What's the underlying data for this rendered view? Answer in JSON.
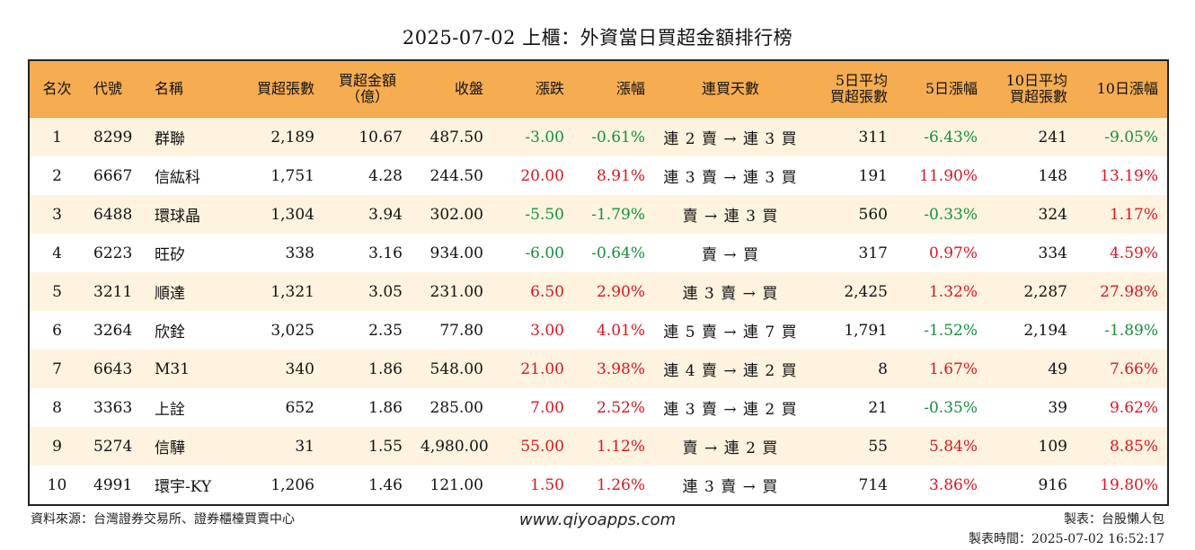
{
  "title": "2025-07-02 上櫃：外資當日買超金額排行榜",
  "colors": {
    "header_bg": "#f6ad52",
    "odd_row_bg": "#fdf3df",
    "up": "#e0141e",
    "down": "#13913a"
  },
  "headers": {
    "rank": "名次",
    "code": "代號",
    "name": "名稱",
    "net_buy_lots": "買超張數",
    "net_buy_amount_1": "買超金額",
    "net_buy_amount_2": "（億）",
    "close": "收盤",
    "change": "漲跌",
    "change_pct": "漲幅",
    "streak": "連買天數",
    "avg5_1": "5日平均",
    "avg5_2": "買超張數",
    "pct5": "5日漲幅",
    "avg10_1": "10日平均",
    "avg10_2": "買超張數",
    "pct10": "10日漲幅"
  },
  "rows": [
    {
      "rank": "1",
      "code": "8299",
      "name": "群聯",
      "lots": "2,189",
      "amount": "10.67",
      "close": "487.50",
      "change": "-3.00",
      "change_dir": "down",
      "pct": "-0.61%",
      "pct_dir": "down",
      "streak": "連 2 賣 → 連 3 買",
      "avg5": "311",
      "pct5": "-6.43%",
      "pct5_dir": "down",
      "avg10": "241",
      "pct10": "-9.05%",
      "pct10_dir": "down"
    },
    {
      "rank": "2",
      "code": "6667",
      "name": "信紘科",
      "lots": "1,751",
      "amount": "4.28",
      "close": "244.50",
      "change": "20.00",
      "change_dir": "up",
      "pct": "8.91%",
      "pct_dir": "up",
      "streak": "連 3 賣 → 連 3 買",
      "avg5": "191",
      "pct5": "11.90%",
      "pct5_dir": "up",
      "avg10": "148",
      "pct10": "13.19%",
      "pct10_dir": "up"
    },
    {
      "rank": "3",
      "code": "6488",
      "name": "環球晶",
      "lots": "1,304",
      "amount": "3.94",
      "close": "302.00",
      "change": "-5.50",
      "change_dir": "down",
      "pct": "-1.79%",
      "pct_dir": "down",
      "streak": "賣 → 連 3 買",
      "avg5": "560",
      "pct5": "-0.33%",
      "pct5_dir": "down",
      "avg10": "324",
      "pct10": "1.17%",
      "pct10_dir": "up"
    },
    {
      "rank": "4",
      "code": "6223",
      "name": "旺矽",
      "lots": "338",
      "amount": "3.16",
      "close": "934.00",
      "change": "-6.00",
      "change_dir": "down",
      "pct": "-0.64%",
      "pct_dir": "down",
      "streak": "賣 → 買",
      "avg5": "317",
      "pct5": "0.97%",
      "pct5_dir": "up",
      "avg10": "334",
      "pct10": "4.59%",
      "pct10_dir": "up"
    },
    {
      "rank": "5",
      "code": "3211",
      "name": "順達",
      "lots": "1,321",
      "amount": "3.05",
      "close": "231.00",
      "change": "6.50",
      "change_dir": "up",
      "pct": "2.90%",
      "pct_dir": "up",
      "streak": "連 3 賣 → 買",
      "avg5": "2,425",
      "pct5": "1.32%",
      "pct5_dir": "up",
      "avg10": "2,287",
      "pct10": "27.98%",
      "pct10_dir": "up"
    },
    {
      "rank": "6",
      "code": "3264",
      "name": "欣銓",
      "lots": "3,025",
      "amount": "2.35",
      "close": "77.80",
      "change": "3.00",
      "change_dir": "up",
      "pct": "4.01%",
      "pct_dir": "up",
      "streak": "連 5 賣 → 連 7 買",
      "avg5": "1,791",
      "pct5": "-1.52%",
      "pct5_dir": "down",
      "avg10": "2,194",
      "pct10": "-1.89%",
      "pct10_dir": "down"
    },
    {
      "rank": "7",
      "code": "6643",
      "name": "M31",
      "lots": "340",
      "amount": "1.86",
      "close": "548.00",
      "change": "21.00",
      "change_dir": "up",
      "pct": "3.98%",
      "pct_dir": "up",
      "streak": "連 4 賣 → 連 2 買",
      "avg5": "8",
      "pct5": "1.67%",
      "pct5_dir": "up",
      "avg10": "49",
      "pct10": "7.66%",
      "pct10_dir": "up"
    },
    {
      "rank": "8",
      "code": "3363",
      "name": "上詮",
      "lots": "652",
      "amount": "1.86",
      "close": "285.00",
      "change": "7.00",
      "change_dir": "up",
      "pct": "2.52%",
      "pct_dir": "up",
      "streak": "連 3 賣 → 連 2 買",
      "avg5": "21",
      "pct5": "-0.35%",
      "pct5_dir": "down",
      "avg10": "39",
      "pct10": "9.62%",
      "pct10_dir": "up"
    },
    {
      "rank": "9",
      "code": "5274",
      "name": "信驊",
      "lots": "31",
      "amount": "1.55",
      "close": "4,980.00",
      "change": "55.00",
      "change_dir": "up",
      "pct": "1.12%",
      "pct_dir": "up",
      "streak": "賣 → 連 2 買",
      "avg5": "55",
      "pct5": "5.84%",
      "pct5_dir": "up",
      "avg10": "109",
      "pct10": "8.85%",
      "pct10_dir": "up"
    },
    {
      "rank": "10",
      "code": "4991",
      "name": "環宇-KY",
      "lots": "1,206",
      "amount": "1.46",
      "close": "121.00",
      "change": "1.50",
      "change_dir": "up",
      "pct": "1.26%",
      "pct_dir": "up",
      "streak": "連 3 賣 → 買",
      "avg5": "714",
      "pct5": "3.86%",
      "pct5_dir": "up",
      "avg10": "916",
      "pct10": "19.80%",
      "pct10_dir": "up"
    }
  ],
  "footer": {
    "source": "資料來源：台灣證券交易所、證券櫃檯買賣中心",
    "website": "www.qiyoapps.com",
    "author": "製表：台股懶人包",
    "made_time": "製表時間：2025-07-02 16:52:17"
  }
}
